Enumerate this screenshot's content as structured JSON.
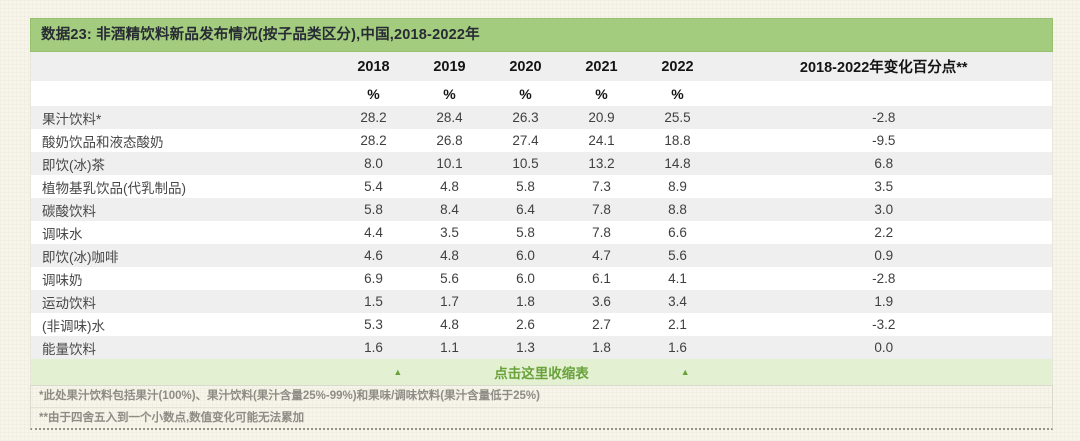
{
  "title": "数据23: 非酒精饮料新品发布情况(按子品类区分),中国,2018-2022年",
  "collapse_control": {
    "label": "点击这里收缩表",
    "arrow": "▲"
  },
  "footnotes": [
    "*此处果汁饮料包括果汁(100%)、果汁饮料(果汁含量25%-99%)和果味/调味饮料(果汁含量低于25%)",
    "**由于四舍五入到一个小数点,数值变化可能无法累加"
  ],
  "colors": {
    "header_green": "#a4cc7e",
    "collapse_green_bg": "#e4f0d2",
    "collapse_green_text": "#69a23b",
    "stripe_gray": "#efefef",
    "page_cream": "#f7f4ea"
  },
  "chart_data": {
    "type": "table",
    "title": "数据23: 非酒精饮料新品发布情况(按子品类区分),中国,2018-2022年",
    "year_columns": [
      "2018",
      "2019",
      "2020",
      "2021",
      "2022"
    ],
    "unit": "%",
    "change_column_label": "2018-2022年变化百分点**",
    "rows": [
      {
        "category": "果汁饮料*",
        "values": [
          28.2,
          28.4,
          26.3,
          20.9,
          25.5
        ],
        "change": -2.8
      },
      {
        "category": "酸奶饮品和液态酸奶",
        "values": [
          28.2,
          26.8,
          27.4,
          24.1,
          18.8
        ],
        "change": -9.5
      },
      {
        "category": "即饮(冰)茶",
        "values": [
          8.0,
          10.1,
          10.5,
          13.2,
          14.8
        ],
        "change": 6.8
      },
      {
        "category": "植物基乳饮品(代乳制品)",
        "values": [
          5.4,
          4.8,
          5.8,
          7.3,
          8.9
        ],
        "change": 3.5
      },
      {
        "category": "碳酸饮料",
        "values": [
          5.8,
          8.4,
          6.4,
          7.8,
          8.8
        ],
        "change": 3.0
      },
      {
        "category": "调味水",
        "values": [
          4.4,
          3.5,
          5.8,
          7.8,
          6.6
        ],
        "change": 2.2
      },
      {
        "category": "即饮(冰)咖啡",
        "values": [
          4.6,
          4.8,
          6.0,
          4.7,
          5.6
        ],
        "change": 0.9
      },
      {
        "category": "调味奶",
        "values": [
          6.9,
          5.6,
          6.0,
          6.1,
          4.1
        ],
        "change": -2.8
      },
      {
        "category": "运动饮料",
        "values": [
          1.5,
          1.7,
          1.8,
          3.6,
          3.4
        ],
        "change": 1.9
      },
      {
        "category": "(非调味)水",
        "values": [
          5.3,
          4.8,
          2.6,
          2.7,
          2.1
        ],
        "change": -3.2
      },
      {
        "category": "能量饮料",
        "values": [
          1.6,
          1.1,
          1.3,
          1.8,
          1.6
        ],
        "change": 0.0
      }
    ]
  }
}
